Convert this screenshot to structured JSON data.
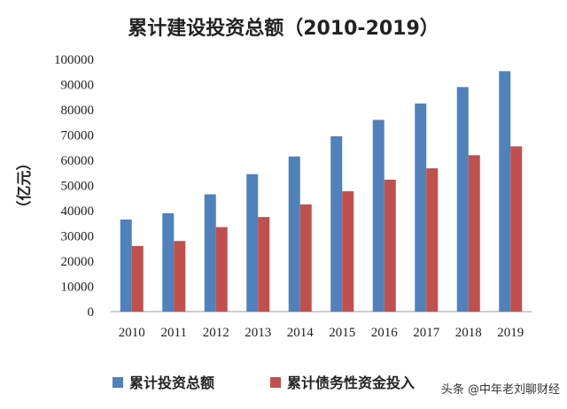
{
  "chart_data": {
    "type": "bar",
    "title": "累计建设投资总额（2010-2019）",
    "ylabel": "（亿元）",
    "xlabel": "",
    "categories": [
      "2010",
      "2011",
      "2012",
      "2013",
      "2014",
      "2015",
      "2016",
      "2017",
      "2018",
      "2019"
    ],
    "series": [
      {
        "name": "累计投资总额",
        "color": "#4F81BD",
        "values": [
          36500,
          39000,
          46500,
          54500,
          61500,
          69500,
          76000,
          82500,
          89000,
          95300
        ]
      },
      {
        "name": "累计债务性资金投入",
        "color": "#C0504D",
        "values": [
          26000,
          28000,
          33500,
          37500,
          42500,
          47700,
          52300,
          56800,
          62000,
          65500
        ]
      }
    ],
    "ylim": [
      0,
      100000
    ],
    "yticks": [
      0,
      10000,
      20000,
      30000,
      40000,
      50000,
      60000,
      70000,
      80000,
      90000,
      100000
    ],
    "grid": false,
    "legend": "bottom"
  },
  "watermark": "头条 @中年老刘聊财经"
}
